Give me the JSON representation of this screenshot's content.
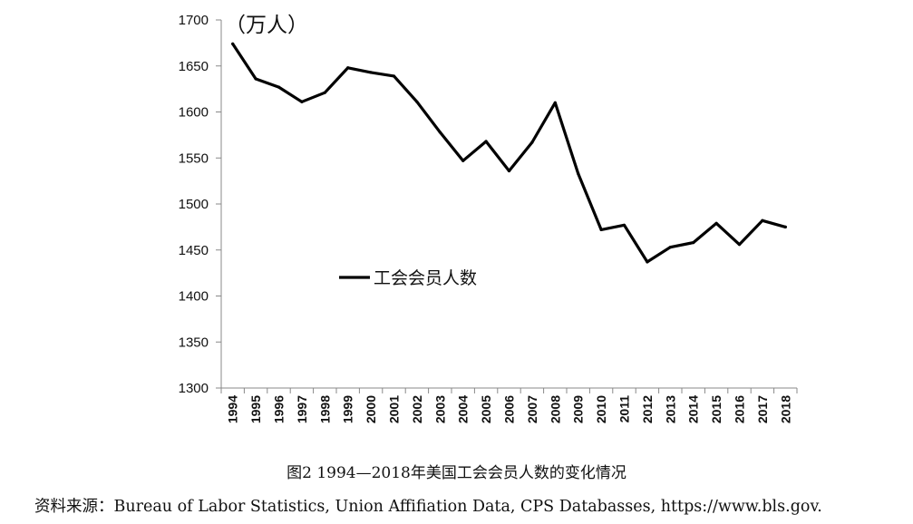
{
  "chart_data": {
    "type": "line",
    "unit_label": "（万人）",
    "x": [
      "1994",
      "1995",
      "1996",
      "1997",
      "1998",
      "1999",
      "2000",
      "2001",
      "2002",
      "2003",
      "2004",
      "2005",
      "2006",
      "2007",
      "2008",
      "2009",
      "2010",
      "2011",
      "2012",
      "2013",
      "2014",
      "2015",
      "2016",
      "2017",
      "2018"
    ],
    "series": [
      {
        "name": "工会会员人数",
        "color": "#000000",
        "values": [
          1674,
          1636,
          1627,
          1611,
          1621,
          1648,
          1643,
          1639,
          1611,
          1578,
          1547,
          1568,
          1536,
          1567,
          1610,
          1533,
          1472,
          1477,
          1437,
          1453,
          1458,
          1479,
          1456,
          1482,
          1475
        ]
      }
    ],
    "yticks": [
      1300,
      1350,
      1400,
      1450,
      1500,
      1550,
      1600,
      1650,
      1700
    ],
    "ylim": [
      1300,
      1700
    ],
    "grid": false,
    "legend_position": "center-left"
  },
  "caption": "图2  1994—2018年美国工会会员人数的变化情况",
  "source": "资料来源：Bureau of Labor Statistics, Union Affifiation Data, CPS Databasses, https://www.bls.gov."
}
